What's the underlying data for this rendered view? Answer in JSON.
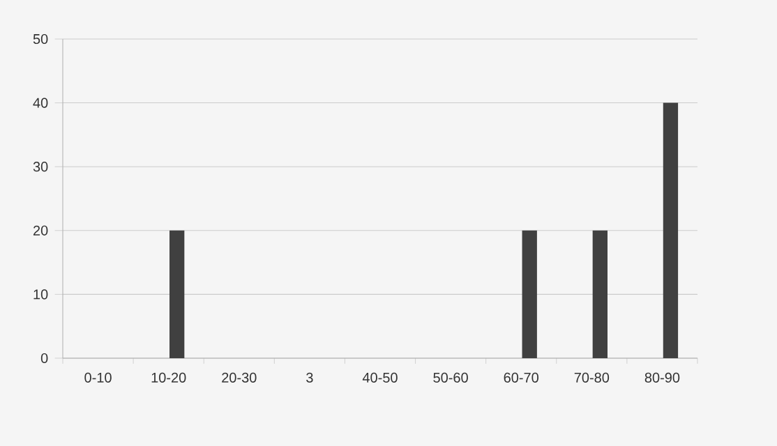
{
  "chart_data": {
    "type": "bar",
    "categories": [
      "0-10",
      "10-20",
      "20-30",
      "3",
      "40-50",
      "50-60",
      "60-70",
      "70-80",
      "80-90"
    ],
    "series": [
      {
        "color": "#ff6600",
        "values": [
          0,
          0,
          0,
          0,
          0,
          0,
          0,
          0,
          0
        ]
      },
      {
        "color": "#404040",
        "values": [
          0,
          20,
          0,
          0,
          0,
          0,
          20,
          20,
          40
        ]
      }
    ],
    "ylim": [
      0,
      50
    ],
    "yticks": [
      0,
      10,
      20,
      30,
      40,
      50
    ],
    "grid": "y"
  }
}
